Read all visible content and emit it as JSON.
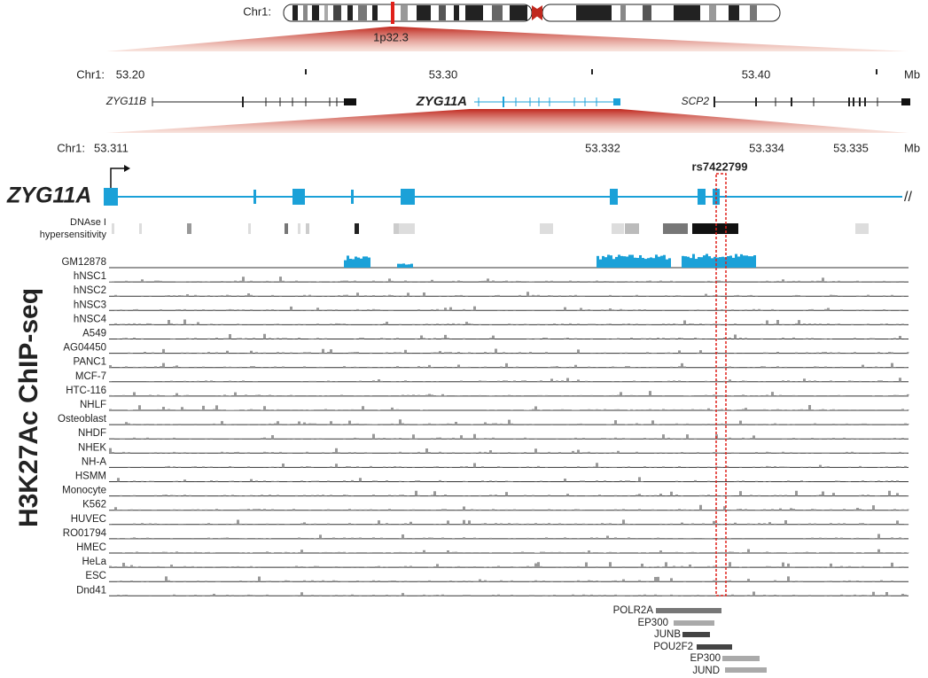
{
  "ideogram": {
    "chrom_label": "Chr1:",
    "band_label": "1p32.3"
  },
  "region1": {
    "chrom_label": "Chr1:",
    "ticks": [
      "53.20",
      "53.30",
      "53.40"
    ],
    "unit": "Mb",
    "genes": [
      "ZYG11B",
      "ZYG11A",
      "SCP2"
    ]
  },
  "region2": {
    "chrom_label": "Chr1:",
    "ticks": [
      "53.311",
      "53.332",
      "53.334",
      "53.335"
    ],
    "unit": "Mb"
  },
  "gene": {
    "name": "ZYG11A",
    "snp": "rs7422799"
  },
  "dnase": {
    "label_lines": [
      "DNAse I",
      "hypersensitivity"
    ]
  },
  "chipseq": {
    "title": "H3K27Ac ChIP-seq",
    "tracks": [
      "GM12878",
      "hNSC1",
      "hNSC2",
      "hNSC3",
      "hNSC4",
      "A549",
      "AG04450",
      "PANC1",
      "MCF-7",
      "HTC-116",
      "NHLF",
      "Osteoblast",
      "NHDF",
      "NHEK",
      "NH-A",
      "HSMM",
      "Monocyte",
      "K562",
      "HUVEC",
      "RO01794",
      "HMEC",
      "HeLa",
      "ESC",
      "Dnd41"
    ]
  },
  "tfbs": [
    "POLR2A",
    "EP300",
    "JUNB",
    "POU2F2",
    "EP300",
    "JUND"
  ]
}
